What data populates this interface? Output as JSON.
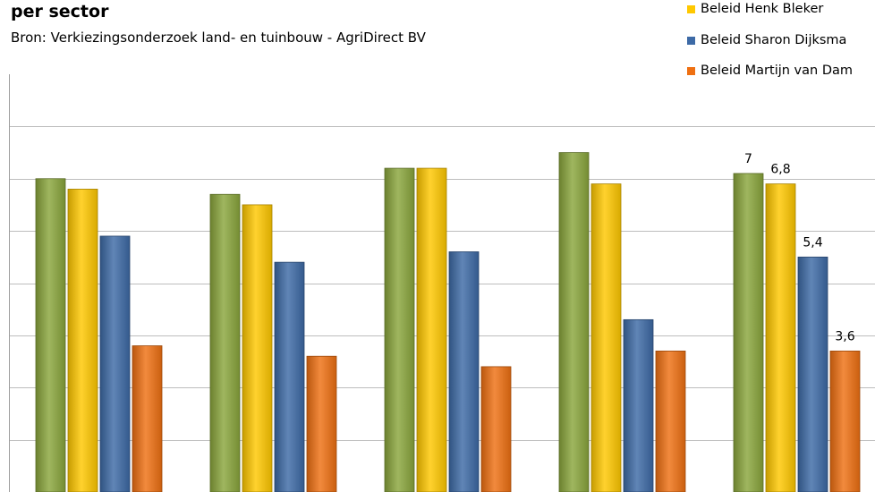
{
  "chart_data": {
    "type": "bar",
    "title": "per sector",
    "subtitle": "Bron: Verkiezingsonderzoek land- en tuinbouw - AgriDirect BV",
    "categories": [
      "",
      "",
      "",
      "",
      ""
    ],
    "series": [
      {
        "name": "",
        "color": "#8aa63c",
        "values": [
          6.9,
          6.6,
          7.1,
          7.4,
          7.0
        ]
      },
      {
        "name": "Beleid Henk Bleker",
        "color": "#ffc800",
        "values": [
          6.7,
          6.4,
          7.1,
          6.8,
          6.8
        ]
      },
      {
        "name": "Beleid Sharon Dijksma",
        "color": "#3d6aa6",
        "values": [
          5.8,
          5.3,
          5.5,
          4.2,
          5.4
        ]
      },
      {
        "name": "Beleid Martijn van Dam",
        "color": "#ef7012",
        "values": [
          3.7,
          3.5,
          3.3,
          3.6,
          3.6
        ]
      }
    ],
    "data_labels": [
      {
        "category_index": 4,
        "series_index": 0,
        "text": "7"
      },
      {
        "category_index": 4,
        "series_index": 1,
        "text": "6,8"
      },
      {
        "category_index": 4,
        "series_index": 2,
        "text": "5,4"
      },
      {
        "category_index": 4,
        "series_index": 3,
        "text": "3,6"
      }
    ],
    "ylim": [
      0.9,
      8.9
    ],
    "gridline_step": 1,
    "grid": true,
    "legend_position": "top-right"
  }
}
